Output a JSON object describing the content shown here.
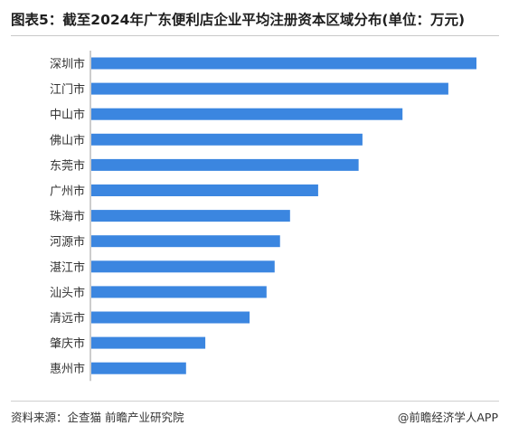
{
  "title": "图表5：截至2024年广东便利店企业平均注册资本区域分布(单位：万元)",
  "source": "资料来源：企查猫 前瞻产业研究院",
  "credit": "@前瞻经济学人APP",
  "colors": {
    "bar": "#3b86e0",
    "text": "#333333"
  },
  "chart_data": {
    "type": "bar",
    "orientation": "horizontal",
    "title": "图表5：截至2024年广东便利店企业平均注册资本区域分布(单位：万元)",
    "categories": [
      "深圳市",
      "江门市",
      "中山市",
      "佛山市",
      "东莞市",
      "广州市",
      "珠海市",
      "河源市",
      "湛江市",
      "汕头市",
      "清远市",
      "肇庆市",
      "惠州市"
    ],
    "values": [
      100,
      92.7,
      80.8,
      70.4,
      69.4,
      58.9,
      51.6,
      49.0,
      47.6,
      45.5,
      41.1,
      29.6,
      24.6
    ],
    "xlim": [
      0,
      100
    ],
    "grid": false,
    "legend": "none",
    "axis_values_shown": false
  }
}
